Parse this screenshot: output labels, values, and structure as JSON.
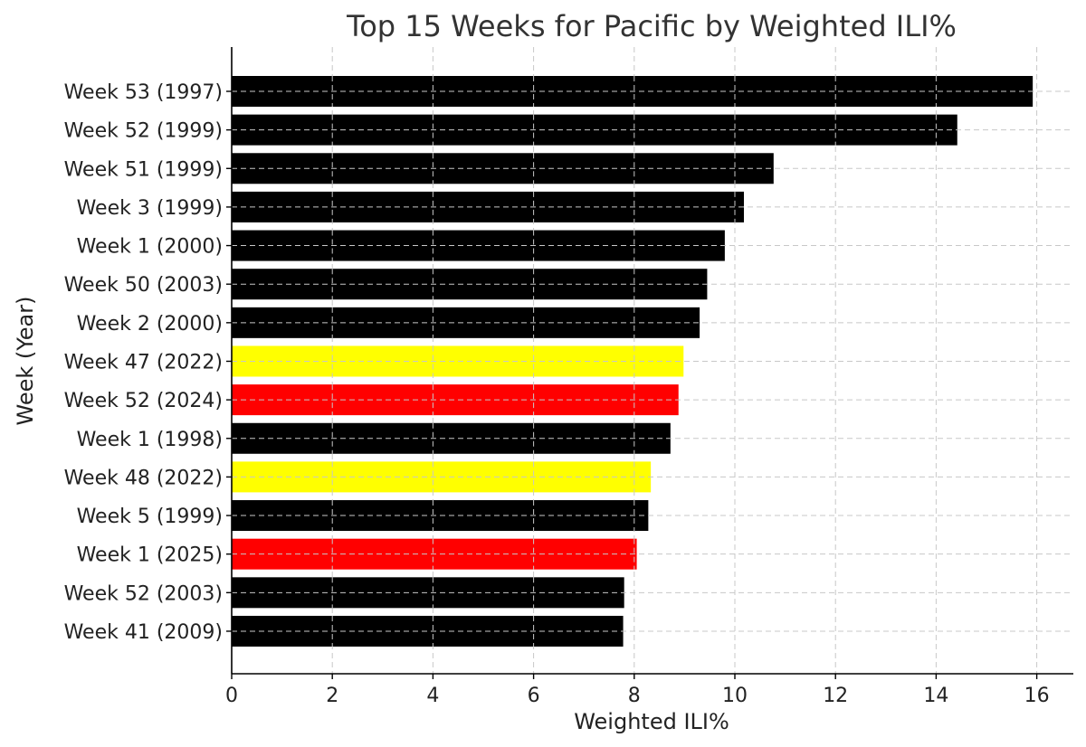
{
  "chart_data": {
    "type": "bar",
    "orientation": "horizontal",
    "title": "Top 15 Weeks for Pacific by Weighted ILI%",
    "xlabel": "Weighted ILI%",
    "ylabel": "Week (Year)",
    "xlim": [
      0,
      16.7
    ],
    "xticks": [
      0,
      2,
      4,
      6,
      8,
      10,
      12,
      14,
      16
    ],
    "grid": true,
    "categories": [
      "Week 53 (1997)",
      "Week 52 (1999)",
      "Week 51 (1999)",
      "Week 3 (1999)",
      "Week 1 (2000)",
      "Week 50 (2003)",
      "Week 2 (2000)",
      "Week 47 (2022)",
      "Week 52 (2024)",
      "Week 1 (1998)",
      "Week 48 (2022)",
      "Week 5 (1999)",
      "Week 1 (2025)",
      "Week 52 (2003)",
      "Week 41 (2009)"
    ],
    "values": [
      15.92,
      14.42,
      10.77,
      10.18,
      9.8,
      9.45,
      9.3,
      8.98,
      8.88,
      8.72,
      8.33,
      8.28,
      8.05,
      7.8,
      7.78
    ],
    "colors": [
      "#000000",
      "#000000",
      "#000000",
      "#000000",
      "#000000",
      "#000000",
      "#000000",
      "#ffff00",
      "#ff0000",
      "#000000",
      "#ffff00",
      "#000000",
      "#ff0000",
      "#000000",
      "#000000"
    ]
  }
}
